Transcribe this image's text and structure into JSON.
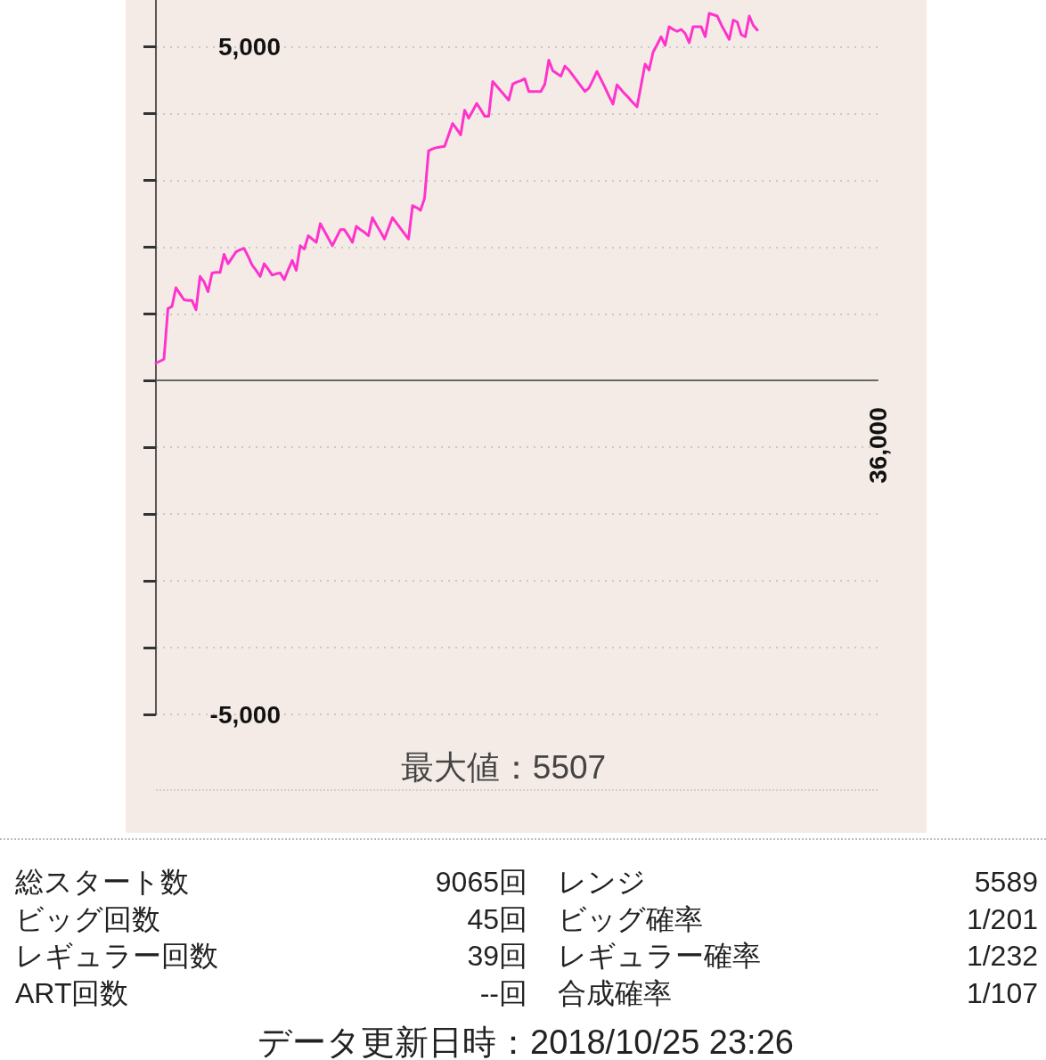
{
  "chart_data": {
    "type": "line",
    "color": "#ff33cc",
    "marker": "none",
    "grid": "y",
    "categories": [
      null,
      null,
      null,
      null,
      null,
      null,
      null,
      null,
      null,
      null,
      null,
      null,
      null,
      null,
      null,
      null,
      null,
      null,
      null,
      null,
      null,
      null,
      null,
      null,
      null,
      null,
      null,
      null,
      null,
      null,
      null,
      null,
      null,
      null,
      null,
      null,
      null,
      null,
      null,
      null,
      null,
      null,
      null,
      null,
      null,
      null,
      null,
      null,
      null,
      null,
      null,
      null,
      null,
      null,
      null,
      null,
      null,
      null,
      null,
      null,
      null,
      null,
      null,
      null,
      null,
      null,
      null,
      null,
      null,
      null,
      null,
      null,
      null,
      null,
      null,
      null,
      null,
      null,
      null,
      null,
      null,
      null,
      null,
      null,
      null,
      null,
      null,
      null,
      null,
      null,
      null,
      null,
      null,
      null,
      null,
      null,
      null,
      null,
      null,
      null,
      null,
      null,
      null,
      null,
      null,
      null,
      null,
      null,
      null,
      null,
      null,
      null,
      null,
      null,
      null,
      null,
      null,
      null,
      null,
      null,
      null,
      null,
      null,
      null,
      null,
      null,
      null,
      null,
      null,
      null,
      null,
      null,
      null,
      null,
      null,
      null,
      null,
      null,
      null,
      null,
      null,
      null,
      null,
      null,
      null,
      null,
      null,
      null,
      null,
      null,
      null,
      null,
      null,
      null,
      null,
      null,
      null,
      null,
      null,
      null,
      null,
      null,
      null,
      null,
      null,
      null,
      null,
      null,
      null,
      null,
      null,
      null,
      null,
      null,
      null,
      null,
      null,
      null,
      null,
      null,
      null
    ],
    "values": [
      260,
      290,
      320,
      1080,
      1110,
      1390,
      1300,
      1210,
      1200,
      1200,
      1060,
      1560,
      1480,
      1330,
      1610,
      1620,
      1620,
      1890,
      1750,
      1840,
      1930,
      1960,
      1980,
      1860,
      1730,
      1650,
      1560,
      1750,
      1670,
      1580,
      1600,
      1610,
      1510,
      1660,
      1800,
      1650,
      2020,
      1970,
      2170,
      2120,
      2070,
      2350,
      2240,
      2130,
      2020,
      2140,
      2260,
      2260,
      2170,
      2070,
      2310,
      2260,
      2220,
      2170,
      2440,
      2330,
      2230,
      2120,
      2280,
      2440,
      2360,
      2280,
      2200,
      2120,
      2620,
      2590,
      2550,
      2730,
      3440,
      3470,
      3490,
      3500,
      3510,
      3680,
      3850,
      3770,
      3680,
      4050,
      3930,
      4040,
      4150,
      4060,
      3960,
      3960,
      4480,
      4410,
      4340,
      4270,
      4200,
      4440,
      4470,
      4490,
      4520,
      4330,
      4330,
      4330,
      4330,
      4440,
      4800,
      4640,
      4600,
      4560,
      4710,
      4650,
      4570,
      4490,
      4410,
      4330,
      4380,
      4500,
      4630,
      4510,
      4390,
      4260,
      4140,
      4430,
      4360,
      4290,
      4230,
      4160,
      4100,
      4420,
      4740,
      4650,
      4920,
      5030,
      5150,
      5020,
      5300,
      5260,
      5230,
      5260,
      5200,
      5060,
      5300,
      5300,
      5300,
      5150,
      5500,
      5480,
      5460,
      5330,
      5220,
      5110,
      5400,
      5370,
      5180,
      5150,
      5460,
      5320,
      5250,
      null,
      null,
      null,
      null,
      null,
      null,
      null,
      null,
      null,
      null,
      null,
      null,
      null,
      null,
      null,
      null,
      null,
      null,
      null,
      null,
      null,
      null,
      null,
      null,
      null,
      null,
      null,
      null,
      null,
      null
    ],
    "ylim": [
      -5000,
      5700
    ],
    "yticks": [
      {
        "value": -5000,
        "label": "-5,000"
      },
      {
        "value": -4000,
        "label": null
      },
      {
        "value": -3000,
        "label": null
      },
      {
        "value": -2000,
        "label": null
      },
      {
        "value": -1000,
        "label": null
      },
      {
        "value": 0,
        "label": null
      },
      {
        "value": 1000,
        "label": null
      },
      {
        "value": 2000,
        "label": null
      },
      {
        "value": 3000,
        "label": null
      },
      {
        "value": 4000,
        "label": null
      },
      {
        "value": 5000,
        "label": "5,000"
      }
    ],
    "annotations": [
      "36,000",
      "最大値：5507",
      "総スタート数",
      "9065回",
      "レンジ",
      "5589",
      "ビッグ回数",
      "45回",
      "ビッグ確率",
      "1/201",
      "レギュラー回数",
      "39回",
      "レギュラー確率",
      "1/232",
      "ART回数",
      "--回",
      "合成確率",
      "1/107",
      "データ更新日時：2018/10/25 23:26"
    ]
  }
}
